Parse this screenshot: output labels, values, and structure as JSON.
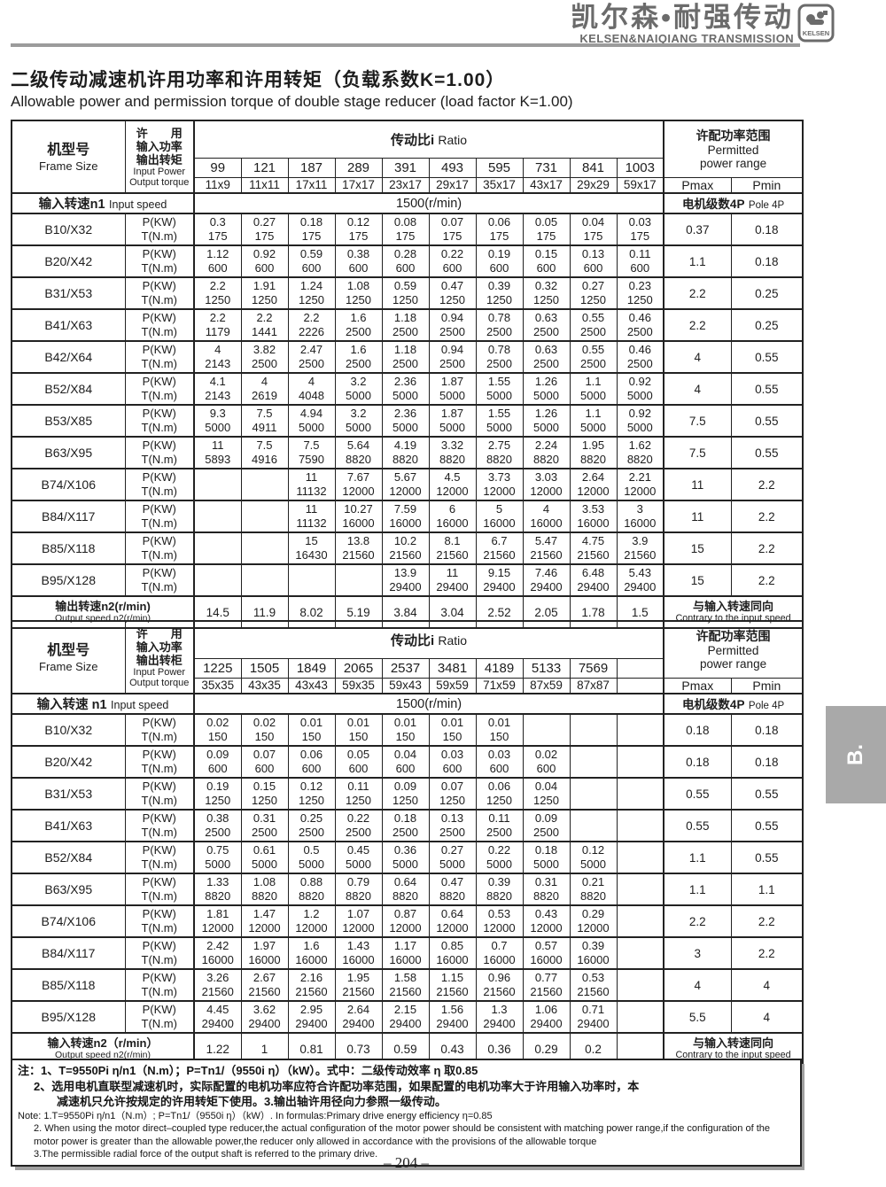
{
  "header": {
    "brand_cn": "凯尔森•耐强传动",
    "brand_en": "KELSEN&NAIQIANG TRANSMISSION",
    "logo_text": "KELSEN"
  },
  "title": {
    "cn": "二级传动减速机许用功率和许用转矩（负载系数K=1.00）",
    "en": "Allowable power and permission torque of double stage reducer (load factor K=1.00)"
  },
  "labels": {
    "frame_cn": "机型号",
    "frame_en": "Frame Size",
    "ratio_cn": "传动比i",
    "ratio_en": "Ratio",
    "permitted_cn": "许配功率范围",
    "permitted_en1": "Permitted",
    "permitted_en2": "power range",
    "pmax": "Pmax",
    "pmin": "Pmin",
    "pole_cn": "电机级数4P",
    "pole_en": "Pole 4P",
    "speed_value": "1500(r/min)",
    "p_unit": "P(KW)",
    "t_unit": "T(N.m)",
    "contrary_cn": "与输入转速同向",
    "contrary_en": "Contrary to the input speed"
  },
  "table1": {
    "power_label": [
      "许　　用",
      "输入功率",
      "输出转矩",
      "Input Power",
      "Output torque"
    ],
    "input_speed_cn": "输入转速n1",
    "input_speed_en": "Input speed",
    "ratios": [
      "99",
      "121",
      "187",
      "289",
      "391",
      "493",
      "595",
      "731",
      "841",
      "1003"
    ],
    "subratios": [
      "11x9",
      "11x11",
      "17x11",
      "17x17",
      "23x17",
      "29x17",
      "35x17",
      "43x17",
      "29x29",
      "59x17"
    ],
    "rows": [
      {
        "frame": "B10/X32",
        "p": [
          "0.3",
          "0.27",
          "0.18",
          "0.12",
          "0.08",
          "0.07",
          "0.06",
          "0.05",
          "0.04",
          "0.03"
        ],
        "t": [
          "175",
          "175",
          "175",
          "175",
          "175",
          "175",
          "175",
          "175",
          "175",
          "175"
        ],
        "pmax": "0.37",
        "pmin": "0.18"
      },
      {
        "frame": "B20/X42",
        "p": [
          "1.12",
          "0.92",
          "0.59",
          "0.38",
          "0.28",
          "0.22",
          "0.19",
          "0.15",
          "0.13",
          "0.11"
        ],
        "t": [
          "600",
          "600",
          "600",
          "600",
          "600",
          "600",
          "600",
          "600",
          "600",
          "600"
        ],
        "pmax": "1.1",
        "pmin": "0.18"
      },
      {
        "frame": "B31/X53",
        "p": [
          "2.2",
          "1.91",
          "1.24",
          "1.08",
          "0.59",
          "0.47",
          "0.39",
          "0.32",
          "0.27",
          "0.23"
        ],
        "t": [
          "1250",
          "1250",
          "1250",
          "1250",
          "1250",
          "1250",
          "1250",
          "1250",
          "1250",
          "1250"
        ],
        "pmax": "2.2",
        "pmin": "0.25"
      },
      {
        "frame": "B41/X63",
        "p": [
          "2.2",
          "2.2",
          "2.2",
          "1.6",
          "1.18",
          "0.94",
          "0.78",
          "0.63",
          "0.55",
          "0.46"
        ],
        "t": [
          "1179",
          "1441",
          "2226",
          "2500",
          "2500",
          "2500",
          "2500",
          "2500",
          "2500",
          "2500"
        ],
        "pmax": "2.2",
        "pmin": "0.25"
      },
      {
        "frame": "B42/X64",
        "p": [
          "4",
          "3.82",
          "2.47",
          "1.6",
          "1.18",
          "0.94",
          "0.78",
          "0.63",
          "0.55",
          "0.46"
        ],
        "t": [
          "2143",
          "2500",
          "2500",
          "2500",
          "2500",
          "2500",
          "2500",
          "2500",
          "2500",
          "2500"
        ],
        "pmax": "4",
        "pmin": "0.55"
      },
      {
        "frame": "B52/X84",
        "p": [
          "4.1",
          "4",
          "4",
          "3.2",
          "2.36",
          "1.87",
          "1.55",
          "1.26",
          "1.1",
          "0.92"
        ],
        "t": [
          "2143",
          "2619",
          "4048",
          "5000",
          "5000",
          "5000",
          "5000",
          "5000",
          "5000",
          "5000"
        ],
        "pmax": "4",
        "pmin": "0.55"
      },
      {
        "frame": "B53/X85",
        "p": [
          "9.3",
          "7.5",
          "4.94",
          "3.2",
          "2.36",
          "1.87",
          "1.55",
          "1.26",
          "1.1",
          "0.92"
        ],
        "t": [
          "5000",
          "4911",
          "5000",
          "5000",
          "5000",
          "5000",
          "5000",
          "5000",
          "5000",
          "5000"
        ],
        "pmax": "7.5",
        "pmin": "0.55"
      },
      {
        "frame": "B63/X95",
        "p": [
          "11",
          "7.5",
          "7.5",
          "5.64",
          "4.19",
          "3.32",
          "2.75",
          "2.24",
          "1.95",
          "1.62"
        ],
        "t": [
          "5893",
          "4916",
          "7590",
          "8820",
          "8820",
          "8820",
          "8820",
          "8820",
          "8820",
          "8820"
        ],
        "pmax": "7.5",
        "pmin": "0.55"
      },
      {
        "frame": "B74/X106",
        "p": [
          "",
          "",
          "11",
          "7.67",
          "5.67",
          "4.5",
          "3.73",
          "3.03",
          "2.64",
          "2.21"
        ],
        "t": [
          "",
          "",
          "11132",
          "12000",
          "12000",
          "12000",
          "12000",
          "12000",
          "12000",
          "12000"
        ],
        "pmax": "11",
        "pmin": "2.2"
      },
      {
        "frame": "B84/X117",
        "p": [
          "",
          "",
          "11",
          "10.27",
          "7.59",
          "6",
          "5",
          "4",
          "3.53",
          "3"
        ],
        "t": [
          "",
          "",
          "11132",
          "16000",
          "16000",
          "16000",
          "16000",
          "16000",
          "16000",
          "16000"
        ],
        "pmax": "11",
        "pmin": "2.2"
      },
      {
        "frame": "B85/X118",
        "p": [
          "",
          "",
          "15",
          "13.8",
          "10.2",
          "8.1",
          "6.7",
          "5.47",
          "4.75",
          "3.9"
        ],
        "t": [
          "",
          "",
          "16430",
          "21560",
          "21560",
          "21560",
          "21560",
          "21560",
          "21560",
          "21560"
        ],
        "pmax": "15",
        "pmin": "2.2"
      },
      {
        "frame": "B95/X128",
        "p": [
          "",
          "",
          "",
          "",
          "13.9",
          "11",
          "9.15",
          "7.46",
          "6.48",
          "5.43"
        ],
        "t": [
          "",
          "",
          "",
          "",
          "29400",
          "29400",
          "29400",
          "29400",
          "29400",
          "29400"
        ],
        "pmax": "15",
        "pmin": "2.2"
      }
    ],
    "output": {
      "label_cn": "输出转速n2(r/min)",
      "label_en": "Output speed n2(r/min)",
      "values": [
        "14.5",
        "11.9",
        "8.02",
        "5.19",
        "3.84",
        "3.04",
        "2.52",
        "2.05",
        "1.78",
        "1.5"
      ]
    }
  },
  "table2": {
    "power_label": [
      "许　　用",
      "输入功率",
      "输出转柜",
      "Input Power",
      "Output torque"
    ],
    "input_speed_cn": "输入转速 n1",
    "input_speed_en": "Input speed",
    "ratios": [
      "1225",
      "1505",
      "1849",
      "2065",
      "2537",
      "3481",
      "4189",
      "5133",
      "7569",
      ""
    ],
    "subratios": [
      "35x35",
      "43x35",
      "43x43",
      "59x35",
      "59x43",
      "59x59",
      "71x59",
      "87x59",
      "87x87",
      ""
    ],
    "rows": [
      {
        "frame": "B10/X32",
        "p": [
          "0.02",
          "0.02",
          "0.01",
          "0.01",
          "0.01",
          "0.01",
          "0.01",
          "",
          "",
          ""
        ],
        "t": [
          "150",
          "150",
          "150",
          "150",
          "150",
          "150",
          "150",
          "",
          "",
          ""
        ],
        "pmax": "0.18",
        "pmin": "0.18"
      },
      {
        "frame": "B20/X42",
        "p": [
          "0.09",
          "0.07",
          "0.06",
          "0.05",
          "0.04",
          "0.03",
          "0.03",
          "0.02",
          "",
          ""
        ],
        "t": [
          "600",
          "600",
          "600",
          "600",
          "600",
          "600",
          "600",
          "600",
          "",
          ""
        ],
        "pmax": "0.18",
        "pmin": "0.18"
      },
      {
        "frame": "B31/X53",
        "p": [
          "0.19",
          "0.15",
          "0.12",
          "0.11",
          "0.09",
          "0.07",
          "0.06",
          "0.04",
          "",
          ""
        ],
        "t": [
          "1250",
          "1250",
          "1250",
          "1250",
          "1250",
          "1250",
          "1250",
          "1250",
          "",
          ""
        ],
        "pmax": "0.55",
        "pmin": "0.55"
      },
      {
        "frame": "B41/X63",
        "p": [
          "0.38",
          "0.31",
          "0.25",
          "0.22",
          "0.18",
          "0.13",
          "0.11",
          "0.09",
          "",
          ""
        ],
        "t": [
          "2500",
          "2500",
          "2500",
          "2500",
          "2500",
          "2500",
          "2500",
          "2500",
          "",
          ""
        ],
        "pmax": "0.55",
        "pmin": "0.55"
      },
      {
        "frame": "B52/X84",
        "p": [
          "0.75",
          "0.61",
          "0.5",
          "0.45",
          "0.36",
          "0.27",
          "0.22",
          "0.18",
          "0.12",
          ""
        ],
        "t": [
          "5000",
          "5000",
          "5000",
          "5000",
          "5000",
          "5000",
          "5000",
          "5000",
          "5000",
          ""
        ],
        "pmax": "1.1",
        "pmin": "0.55"
      },
      {
        "frame": "B63/X95",
        "p": [
          "1.33",
          "1.08",
          "0.88",
          "0.79",
          "0.64",
          "0.47",
          "0.39",
          "0.31",
          "0.21",
          ""
        ],
        "t": [
          "8820",
          "8820",
          "8820",
          "8820",
          "8820",
          "8820",
          "8820",
          "8820",
          "8820",
          ""
        ],
        "pmax": "1.1",
        "pmin": "1.1"
      },
      {
        "frame": "B74/X106",
        "p": [
          "1.81",
          "1.47",
          "1.2",
          "1.07",
          "0.87",
          "0.64",
          "0.53",
          "0.43",
          "0.29",
          ""
        ],
        "t": [
          "12000",
          "12000",
          "12000",
          "12000",
          "12000",
          "12000",
          "12000",
          "12000",
          "12000",
          ""
        ],
        "pmax": "2.2",
        "pmin": "2.2"
      },
      {
        "frame": "B84/X117",
        "p": [
          "2.42",
          "1.97",
          "1.6",
          "1.43",
          "1.17",
          "0.85",
          "0.7",
          "0.57",
          "0.39",
          ""
        ],
        "t": [
          "16000",
          "16000",
          "16000",
          "16000",
          "16000",
          "16000",
          "16000",
          "16000",
          "16000",
          ""
        ],
        "pmax": "3",
        "pmin": "2.2"
      },
      {
        "frame": "B85/X118",
        "p": [
          "3.26",
          "2.67",
          "2.16",
          "1.95",
          "1.58",
          "1.15",
          "0.96",
          "0.77",
          "0.53",
          ""
        ],
        "t": [
          "21560",
          "21560",
          "21560",
          "21560",
          "21560",
          "21560",
          "21560",
          "21560",
          "21560",
          ""
        ],
        "pmax": "4",
        "pmin": "4"
      },
      {
        "frame": "B95/X128",
        "p": [
          "4.45",
          "3.62",
          "2.95",
          "2.64",
          "2.15",
          "1.56",
          "1.3",
          "1.06",
          "0.71",
          ""
        ],
        "t": [
          "29400",
          "29400",
          "29400",
          "29400",
          "29400",
          "29400",
          "29400",
          "29400",
          "29400",
          ""
        ],
        "pmax": "5.5",
        "pmin": "4"
      }
    ],
    "output": {
      "label_cn": "输入转速n2（r/min）",
      "label_en": "Output speed n2(r/min)",
      "values": [
        "1.22",
        "1",
        "0.81",
        "0.73",
        "0.59",
        "0.43",
        "0.36",
        "0.29",
        "0.2",
        ""
      ]
    }
  },
  "notes": {
    "cn1": "注：1、T=9550Pi η/n1（N.m）；P=Tn1/（9550i η）（kW）。式中：二级传动效率 η 取0.85",
    "cn2": "2、选用电机直联型减速机时，实际配置的电机功率应符合许配功率范围，如果配置的电机功率大于许用输入功率时，本",
    "cn3": "减速机只允许按规定的许用转矩下使用。3.输出轴许用径向力参照一级传动。",
    "en1": "Note: 1.T=9550Pi η/n1（N.m）; P=Tn1/（9550i η）（kW）. In formulas:Primary drive energy efficiency η=0.85",
    "en2": "2. When using the motor direct–coupled type reducer,the actual configuration of the motor power should be consistent with matching power range,if the configuration of the",
    "en3": "motor power is greater than the allowable power,the reducer only allowed in accordance with the provisions of the allowable torque",
    "en4": "3.The permissible radial force of the output shaft is referred to the primary drive."
  },
  "footer": {
    "page": "– 204 –"
  },
  "side_tab": "B."
}
